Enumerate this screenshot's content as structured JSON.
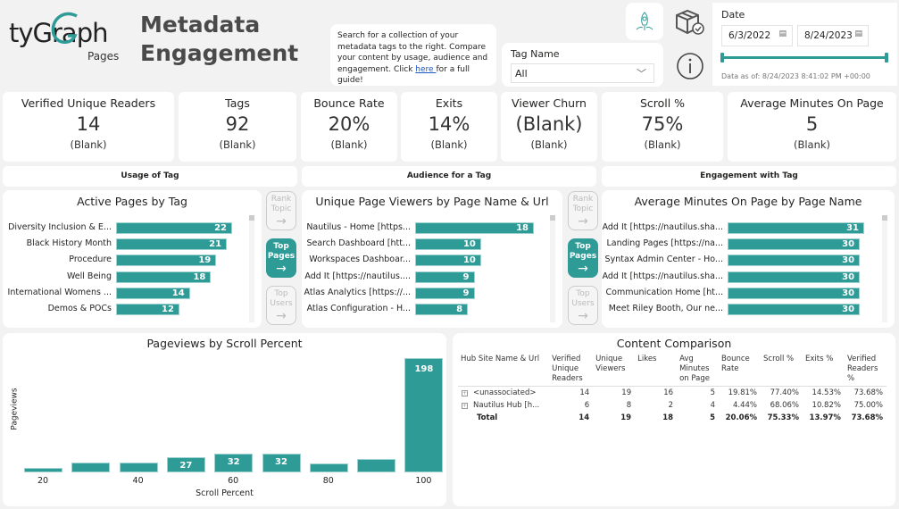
{
  "logo": {
    "brand": "tyGraph",
    "sub": "Pages"
  },
  "title": {
    "line1": "Metadata",
    "line2": "Engagement"
  },
  "info": {
    "text_before": "Search for a collection of your metadata tags to the right. Compare your content by usage, audience and engagement. Click ",
    "link": "here ",
    "text_after": "for a full guide!"
  },
  "tag_slicer": {
    "label": "Tag Name",
    "value": "All"
  },
  "date_slicer": {
    "label": "Date",
    "start": "6/3/2022",
    "end": "8/24/2023",
    "as_of": "Data as of: 8/24/2023 8:41:02 PM +00:00"
  },
  "icons": {
    "rocket": "rocket-icon",
    "box": "package-check-icon",
    "info": "info-icon"
  },
  "accent": "#2e9b97",
  "kpis": [
    {
      "title": "Verified Unique Readers",
      "value": "14",
      "sub": "(Blank)"
    },
    {
      "title": "Tags",
      "value": "92",
      "sub": "(Blank)"
    },
    {
      "title": "Bounce Rate",
      "value": "20%",
      "sub": "(Blank)"
    },
    {
      "title": "Exits",
      "value": "14%",
      "sub": "(Blank)"
    },
    {
      "title": "Viewer Churn",
      "value": "(Blank)",
      "sub": "(Blank)"
    },
    {
      "title": "Scroll %",
      "value": "75%",
      "sub": "(Blank)"
    },
    {
      "title": "Average Minutes On Page",
      "value": "5",
      "sub": "(Blank)"
    }
  ],
  "sections": [
    "Usage of Tag",
    "Audience for a Tag",
    "Engagement with Tag"
  ],
  "nav_buttons": [
    {
      "line1": "Rank",
      "line2": "Topic",
      "active": false
    },
    {
      "line1": "Top",
      "line2": "Pages",
      "active": true
    },
    {
      "line1": "Top",
      "line2": "Users",
      "active": false
    }
  ],
  "chart_data": [
    {
      "type": "bar",
      "orientation": "horizontal",
      "title": "Active Pages by Tag",
      "categories": [
        "Diversity Inclusion & E...",
        "Black History Month",
        "Procedure",
        "Well Being",
        "International Womens ...",
        "Demos & POCs"
      ],
      "values": [
        22,
        21,
        19,
        18,
        14,
        12
      ]
    },
    {
      "type": "bar",
      "orientation": "horizontal",
      "title": "Unique Page Viewers by Page Name & Url",
      "categories": [
        "Nautilus - Home [https...",
        "Search Dashboard [htt...",
        "Workspaces Dashboar...",
        "Add It [https://nautilus....",
        "Atlas Analytics [https://...",
        "Atlas Configuration - H..."
      ],
      "values": [
        18,
        10,
        10,
        9,
        9,
        8
      ]
    },
    {
      "type": "bar",
      "orientation": "horizontal",
      "title": "Average Minutes On Page by Page Name",
      "categories": [
        "Add It [https://nautilus.sha...",
        "Landing Pages [https://na...",
        "Syntax Admin Center - Ho...",
        "Add It [https://nautilus.sha...",
        "Communication Home [ht...",
        "Meet Riley Booth, Our ne..."
      ],
      "values": [
        31,
        30,
        30,
        30,
        30,
        30
      ]
    },
    {
      "type": "bar",
      "title": "Pageviews by Scroll Percent",
      "xlabel": "Scroll Percent",
      "ylabel": "Pageviews",
      "x": [
        20,
        30,
        40,
        50,
        60,
        70,
        80,
        90,
        100
      ],
      "values": [
        8,
        17,
        17,
        27,
        32,
        32,
        16,
        23,
        198
      ],
      "labels_shown": [
        false,
        false,
        false,
        true,
        true,
        true,
        false,
        false,
        true
      ],
      "xticks": [
        "20",
        "40",
        "60",
        "80",
        "100"
      ]
    }
  ],
  "table": {
    "title": "Content Comparison",
    "headers": [
      "Hub Site Name & Url",
      "Verified Unique Readers",
      "Unique Viewers",
      "Likes",
      "Avg Minutes on Page",
      "Bounce Rate",
      "Scroll %",
      "Exits %",
      "Verified Readers %"
    ],
    "rows": [
      [
        "<unassociated>",
        "14",
        "19",
        "16",
        "5",
        "19.81%",
        "77.40%",
        "14.53%",
        "73.68%"
      ],
      [
        "Nautilus Hub [h...",
        "6",
        "8",
        "2",
        "4",
        "4.44%",
        "68.06%",
        "10.82%",
        "75.00%"
      ]
    ],
    "total": [
      "Total",
      "14",
      "19",
      "18",
      "5",
      "20.06%",
      "75.33%",
      "13.97%",
      "73.68%"
    ]
  }
}
